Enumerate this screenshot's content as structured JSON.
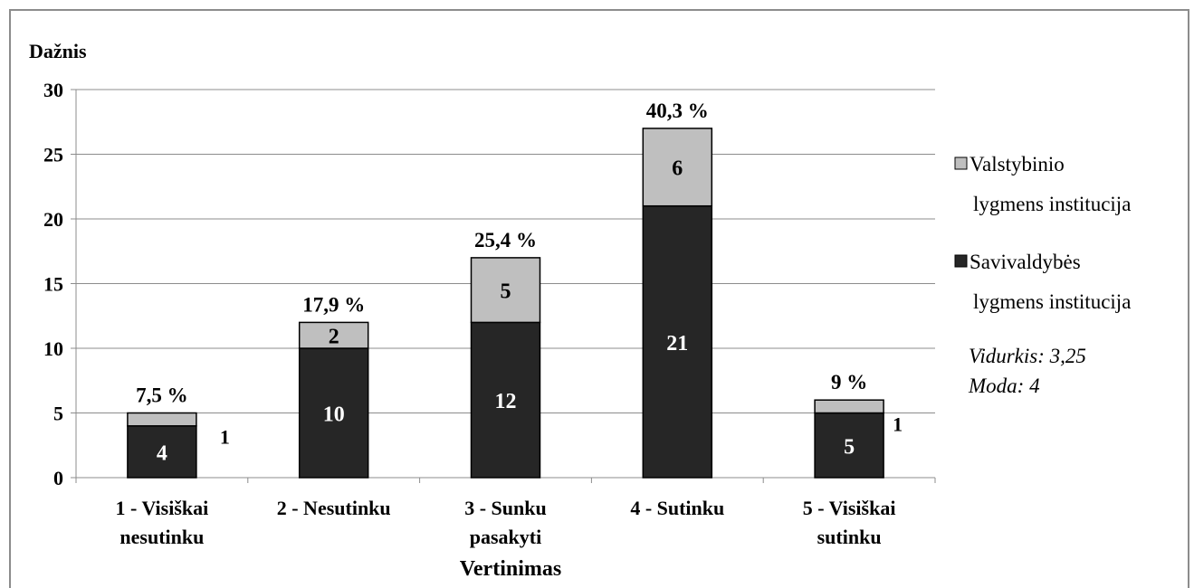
{
  "chart_data": {
    "type": "bar",
    "stacked": true,
    "ylabel": "Dažnis",
    "xlabel": "Vertinimas",
    "ylim": [
      0,
      30
    ],
    "yticks": [
      0,
      5,
      10,
      15,
      20,
      25,
      30
    ],
    "grid": true,
    "legend_position": "right",
    "categories": [
      [
        "1 - Visiškai",
        "nesutinku"
      ],
      [
        "2 - Nesutinku"
      ],
      [
        "3 - Sunku",
        "pasakyti"
      ],
      [
        "4 - Sutinku"
      ],
      [
        "5 - Visiškai",
        "sutinku"
      ]
    ],
    "series": [
      {
        "name": "Savivaldybės lygmens institucija",
        "legend_lines": [
          "Savivaldybės",
          "lygmens institucija"
        ],
        "color": "#262626",
        "label_color": "#ffffff",
        "values": [
          4,
          10,
          12,
          21,
          5
        ]
      },
      {
        "name": "Valstybinio lygmens institucija",
        "legend_lines": [
          "Valstybinio",
          "lygmens institucija"
        ],
        "color": "#bfbfbf",
        "label_color": "#000000",
        "values": [
          1,
          2,
          5,
          6,
          1
        ]
      }
    ],
    "percent_labels": [
      "7,5 %",
      "17,9 %",
      "25,4 %",
      "40,3 %",
      "9 %"
    ],
    "annotations": [
      "Vidurkis: 3,25",
      "Moda: 4"
    ]
  }
}
